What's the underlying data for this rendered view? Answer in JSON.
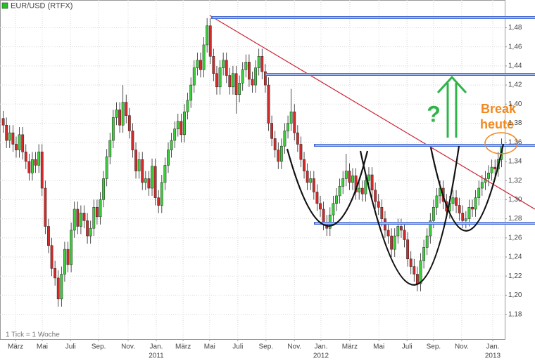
{
  "chart_data": {
    "type": "candlestick",
    "legend": "upper left",
    "grid": true,
    "note": "1 Tick = 1 Woche",
    "annotations": {
      "question": "?",
      "break": "Break",
      "today": "heute"
    },
    "xlim": [
      -1,
      155
    ],
    "ylim": [
      1.154,
      1.509
    ],
    "yticks": [
      {
        "value": 1.18,
        "label": "1,18"
      },
      {
        "value": 1.2,
        "label": "1,20"
      },
      {
        "value": 1.22,
        "label": "1,22"
      },
      {
        "value": 1.24,
        "label": "1,24"
      },
      {
        "value": 1.26,
        "label": "1,26"
      },
      {
        "value": 1.28,
        "label": "1,28"
      },
      {
        "value": 1.3,
        "label": "1,30"
      },
      {
        "value": 1.32,
        "label": "1,32"
      },
      {
        "value": 1.34,
        "label": "1,34"
      },
      {
        "value": 1.36,
        "label": "1,36"
      },
      {
        "value": 1.38,
        "label": "1,38"
      },
      {
        "value": 1.4,
        "label": "1,40"
      },
      {
        "value": 1.42,
        "label": "1,42"
      },
      {
        "value": 1.44,
        "label": "1,44"
      },
      {
        "value": 1.46,
        "label": "1,46"
      },
      {
        "value": 1.48,
        "label": "1,48"
      }
    ],
    "xticks": [
      {
        "value": 3.8,
        "label": "März"
      },
      {
        "value": 12.05,
        "label": "Mai"
      },
      {
        "value": 20.8,
        "label": "Juli"
      },
      {
        "value": 29.5,
        "label": "Sep."
      },
      {
        "value": 38.6,
        "label": "Nov."
      },
      {
        "value": 47.3,
        "label": "Jan."
      },
      {
        "value": 55.6,
        "label": "März"
      },
      {
        "value": 63.8,
        "label": "Mai"
      },
      {
        "value": 72.5,
        "label": "Juli"
      },
      {
        "value": 81.2,
        "label": "Sep."
      },
      {
        "value": 90,
        "label": "Nov."
      },
      {
        "value": 98.2,
        "label": "Jan."
      },
      {
        "value": 107.1,
        "label": "März"
      },
      {
        "value": 116.1,
        "label": "Mai"
      },
      {
        "value": 124.8,
        "label": "Juli"
      },
      {
        "value": 133,
        "label": "Sep."
      },
      {
        "value": 141.7,
        "label": "Nov."
      },
      {
        "value": 151.3,
        "label": "Jan."
      }
    ],
    "x_year_labels": [
      {
        "value": 47.3,
        "label": "2011"
      },
      {
        "value": 98.2,
        "label": "2012"
      },
      {
        "value": 151.3,
        "label": "2013"
      }
    ],
    "series": [
      {
        "name": "EUR/USD (RTFX)",
        "color": "#22c422",
        "up_color": "#3ccf3c",
        "down_color": "#d42a2a",
        "ohlc": [
          [
            1.385,
            1.393,
            1.37,
            1.378
          ],
          [
            1.378,
            1.386,
            1.354,
            1.362
          ],
          [
            1.362,
            1.378,
            1.354,
            1.37
          ],
          [
            1.37,
            1.378,
            1.35,
            1.358
          ],
          [
            1.358,
            1.366,
            1.344,
            1.352
          ],
          [
            1.352,
            1.376,
            1.344,
            1.368
          ],
          [
            1.368,
            1.376,
            1.342,
            1.35
          ],
          [
            1.35,
            1.358,
            1.332,
            1.34
          ],
          [
            1.34,
            1.348,
            1.32,
            1.328
          ],
          [
            1.328,
            1.35,
            1.32,
            1.342
          ],
          [
            1.342,
            1.35,
            1.328,
            1.336
          ],
          [
            1.336,
            1.358,
            1.328,
            1.35
          ],
          [
            1.35,
            1.358,
            1.304,
            1.312
          ],
          [
            1.312,
            1.32,
            1.264,
            1.272
          ],
          [
            1.272,
            1.28,
            1.244,
            1.252
          ],
          [
            1.252,
            1.26,
            1.22,
            1.228
          ],
          [
            1.228,
            1.236,
            1.21,
            1.218
          ],
          [
            1.218,
            1.226,
            1.188,
            1.196
          ],
          [
            1.196,
            1.23,
            1.188,
            1.222
          ],
          [
            1.222,
            1.256,
            1.214,
            1.248
          ],
          [
            1.248,
            1.256,
            1.224,
            1.232
          ],
          [
            1.232,
            1.276,
            1.224,
            1.268
          ],
          [
            1.268,
            1.298,
            1.26,
            1.29
          ],
          [
            1.29,
            1.298,
            1.264,
            1.272
          ],
          [
            1.272,
            1.294,
            1.264,
            1.286
          ],
          [
            1.286,
            1.294,
            1.27,
            1.278
          ],
          [
            1.278,
            1.286,
            1.254,
            1.262
          ],
          [
            1.262,
            1.278,
            1.254,
            1.27
          ],
          [
            1.27,
            1.3,
            1.262,
            1.292
          ],
          [
            1.292,
            1.3,
            1.274,
            1.282
          ],
          [
            1.282,
            1.308,
            1.274,
            1.3
          ],
          [
            1.3,
            1.33,
            1.292,
            1.322
          ],
          [
            1.322,
            1.353,
            1.314,
            1.345
          ],
          [
            1.345,
            1.37,
            1.337,
            1.362
          ],
          [
            1.362,
            1.394,
            1.354,
            1.386
          ],
          [
            1.386,
            1.402,
            1.378,
            1.394
          ],
          [
            1.394,
            1.402,
            1.37,
            1.378
          ],
          [
            1.378,
            1.42,
            1.37,
            1.402
          ],
          [
            1.402,
            1.41,
            1.38,
            1.388
          ],
          [
            1.388,
            1.396,
            1.364,
            1.372
          ],
          [
            1.372,
            1.38,
            1.344,
            1.352
          ],
          [
            1.352,
            1.36,
            1.322,
            1.33
          ],
          [
            1.33,
            1.35,
            1.322,
            1.342
          ],
          [
            1.342,
            1.35,
            1.31,
            1.318
          ],
          [
            1.318,
            1.33,
            1.31,
            1.322
          ],
          [
            1.322,
            1.33,
            1.304,
            1.312
          ],
          [
            1.312,
            1.343,
            1.304,
            1.335
          ],
          [
            1.335,
            1.343,
            1.294,
            1.302
          ],
          [
            1.302,
            1.31,
            1.286,
            1.294
          ],
          [
            1.294,
            1.326,
            1.286,
            1.318
          ],
          [
            1.318,
            1.344,
            1.31,
            1.336
          ],
          [
            1.336,
            1.36,
            1.328,
            1.352
          ],
          [
            1.352,
            1.37,
            1.344,
            1.362
          ],
          [
            1.362,
            1.382,
            1.354,
            1.374
          ],
          [
            1.374,
            1.39,
            1.366,
            1.382
          ],
          [
            1.382,
            1.39,
            1.36,
            1.368
          ],
          [
            1.368,
            1.4,
            1.36,
            1.392
          ],
          [
            1.392,
            1.412,
            1.384,
            1.404
          ],
          [
            1.404,
            1.428,
            1.396,
            1.42
          ],
          [
            1.42,
            1.446,
            1.412,
            1.438
          ],
          [
            1.438,
            1.454,
            1.43,
            1.446
          ],
          [
            1.446,
            1.454,
            1.428,
            1.436
          ],
          [
            1.436,
            1.47,
            1.428,
            1.462
          ],
          [
            1.462,
            1.49,
            1.454,
            1.482
          ],
          [
            1.482,
            1.49,
            1.442,
            1.45
          ],
          [
            1.45,
            1.458,
            1.424,
            1.432
          ],
          [
            1.432,
            1.44,
            1.41,
            1.418
          ],
          [
            1.418,
            1.446,
            1.41,
            1.438
          ],
          [
            1.438,
            1.454,
            1.43,
            1.446
          ],
          [
            1.446,
            1.454,
            1.422,
            1.43
          ],
          [
            1.43,
            1.438,
            1.41,
            1.418
          ],
          [
            1.418,
            1.44,
            1.41,
            1.432
          ],
          [
            1.432,
            1.44,
            1.39,
            1.41
          ],
          [
            1.41,
            1.43,
            1.402,
            1.422
          ],
          [
            1.422,
            1.444,
            1.414,
            1.436
          ],
          [
            1.436,
            1.452,
            1.428,
            1.444
          ],
          [
            1.444,
            1.452,
            1.418,
            1.426
          ],
          [
            1.426,
            1.434,
            1.412,
            1.42
          ],
          [
            1.42,
            1.446,
            1.412,
            1.438
          ],
          [
            1.438,
            1.458,
            1.43,
            1.45
          ],
          [
            1.45,
            1.458,
            1.426,
            1.434
          ],
          [
            1.434,
            1.442,
            1.412,
            1.42
          ],
          [
            1.42,
            1.428,
            1.372,
            1.38
          ],
          [
            1.38,
            1.388,
            1.356,
            1.364
          ],
          [
            1.364,
            1.372,
            1.344,
            1.352
          ],
          [
            1.352,
            1.36,
            1.332,
            1.34
          ],
          [
            1.34,
            1.364,
            1.332,
            1.356
          ],
          [
            1.356,
            1.38,
            1.348,
            1.372
          ],
          [
            1.372,
            1.388,
            1.364,
            1.38
          ],
          [
            1.38,
            1.416,
            1.372,
            1.392
          ],
          [
            1.392,
            1.4,
            1.362,
            1.37
          ],
          [
            1.37,
            1.378,
            1.35,
            1.358
          ],
          [
            1.358,
            1.366,
            1.334,
            1.342
          ],
          [
            1.342,
            1.35,
            1.322,
            1.33
          ],
          [
            1.33,
            1.338,
            1.31,
            1.318
          ],
          [
            1.318,
            1.33,
            1.31,
            1.322
          ],
          [
            1.322,
            1.33,
            1.3,
            1.308
          ],
          [
            1.308,
            1.316,
            1.288,
            1.296
          ],
          [
            1.296,
            1.304,
            1.282,
            1.29
          ],
          [
            1.29,
            1.298,
            1.268,
            1.276
          ],
          [
            1.276,
            1.284,
            1.262,
            1.27
          ],
          [
            1.27,
            1.292,
            1.262,
            1.284
          ],
          [
            1.284,
            1.304,
            1.276,
            1.296
          ],
          [
            1.296,
            1.312,
            1.288,
            1.304
          ],
          [
            1.304,
            1.322,
            1.296,
            1.314
          ],
          [
            1.314,
            1.33,
            1.306,
            1.322
          ],
          [
            1.322,
            1.348,
            1.314,
            1.33
          ],
          [
            1.33,
            1.338,
            1.31,
            1.318
          ],
          [
            1.318,
            1.333,
            1.31,
            1.325
          ],
          [
            1.325,
            1.333,
            1.3,
            1.308
          ],
          [
            1.308,
            1.32,
            1.3,
            1.312
          ],
          [
            1.312,
            1.32,
            1.298,
            1.306
          ],
          [
            1.306,
            1.328,
            1.298,
            1.32
          ],
          [
            1.32,
            1.334,
            1.312,
            1.326
          ],
          [
            1.326,
            1.334,
            1.302,
            1.31
          ],
          [
            1.31,
            1.318,
            1.29,
            1.298
          ],
          [
            1.298,
            1.306,
            1.284,
            1.292
          ],
          [
            1.292,
            1.3,
            1.272,
            1.28
          ],
          [
            1.28,
            1.288,
            1.26,
            1.268
          ],
          [
            1.268,
            1.276,
            1.254,
            1.262
          ],
          [
            1.262,
            1.27,
            1.24,
            1.248
          ],
          [
            1.248,
            1.27,
            1.24,
            1.262
          ],
          [
            1.262,
            1.28,
            1.254,
            1.272
          ],
          [
            1.272,
            1.28,
            1.26,
            1.268
          ],
          [
            1.268,
            1.276,
            1.25,
            1.258
          ],
          [
            1.258,
            1.266,
            1.23,
            1.238
          ],
          [
            1.238,
            1.246,
            1.222,
            1.23
          ],
          [
            1.23,
            1.238,
            1.214,
            1.222
          ],
          [
            1.222,
            1.23,
            1.204,
            1.212
          ],
          [
            1.212,
            1.244,
            1.204,
            1.236
          ],
          [
            1.236,
            1.258,
            1.228,
            1.25
          ],
          [
            1.25,
            1.27,
            1.242,
            1.262
          ],
          [
            1.262,
            1.286,
            1.254,
            1.278
          ],
          [
            1.278,
            1.3,
            1.27,
            1.292
          ],
          [
            1.292,
            1.312,
            1.284,
            1.304
          ],
          [
            1.304,
            1.32,
            1.296,
            1.312
          ],
          [
            1.312,
            1.32,
            1.29,
            1.298
          ],
          [
            1.298,
            1.306,
            1.28,
            1.288
          ],
          [
            1.288,
            1.304,
            1.28,
            1.296
          ],
          [
            1.296,
            1.31,
            1.288,
            1.302
          ],
          [
            1.302,
            1.31,
            1.286,
            1.294
          ],
          [
            1.294,
            1.302,
            1.278,
            1.286
          ],
          [
            1.286,
            1.294,
            1.27,
            1.278
          ],
          [
            1.278,
            1.288,
            1.27,
            1.28
          ],
          [
            1.28,
            1.3,
            1.272,
            1.292
          ],
          [
            1.292,
            1.3,
            1.282,
            1.29
          ],
          [
            1.29,
            1.31,
            1.282,
            1.302
          ],
          [
            1.302,
            1.32,
            1.294,
            1.312
          ],
          [
            1.312,
            1.326,
            1.304,
            1.318
          ],
          [
            1.318,
            1.33,
            1.31,
            1.322
          ],
          [
            1.322,
            1.336,
            1.314,
            1.328
          ],
          [
            1.328,
            1.342,
            1.32,
            1.334
          ],
          [
            1.334,
            1.342,
            1.324,
            1.332
          ],
          [
            1.332,
            1.35,
            1.324,
            1.342
          ],
          [
            1.342,
            1.364,
            1.334,
            1.356
          ]
        ]
      }
    ]
  }
}
